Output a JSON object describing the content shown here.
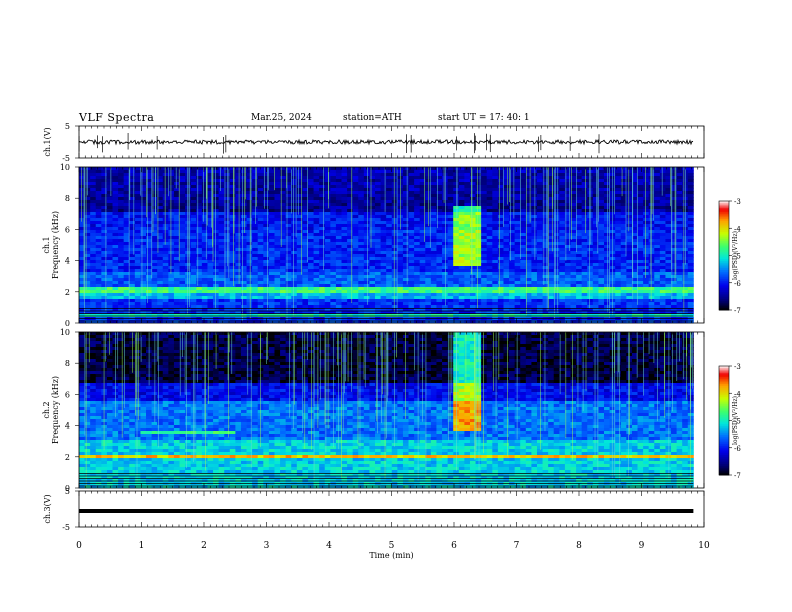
{
  "header": {
    "title": "VLF  Spectra",
    "date": "Mar.25, 2024",
    "station": "station=ATH",
    "start_ut": "start  UT  =    17: 40: 1"
  },
  "chart_data": [
    {
      "type": "line",
      "name": "ch1-voltage",
      "ylabel": "ch.1(V)",
      "ylim": [
        -5,
        5
      ],
      "yticks": [
        "5",
        "-5"
      ],
      "xlim": [
        0,
        10
      ]
    },
    {
      "type": "heatmap",
      "name": "ch1-spectrogram",
      "ylabel": "ch.1\nFrequency (kHz)",
      "ylim": [
        0,
        10
      ],
      "yticks": [
        "0",
        "2",
        "4",
        "6",
        "8",
        "10"
      ],
      "xlim": [
        0,
        10
      ],
      "colorbar": {
        "label": "log(PSD)(V²/Hz)",
        "range": [
          -7,
          -3
        ],
        "ticks": [
          "-3",
          "-4",
          "-5",
          "-6",
          "-7"
        ]
      }
    },
    {
      "type": "heatmap",
      "name": "ch2-spectrogram",
      "ylabel": "ch.2\nFrequency (kHz)",
      "ylim": [
        0,
        10
      ],
      "yticks": [
        "0",
        "2",
        "4",
        "6",
        "8",
        "10"
      ],
      "xlim": [
        0,
        10
      ],
      "colorbar": {
        "label": "log(PSD)(V²/Hz)",
        "range": [
          -7,
          -3
        ],
        "ticks": [
          "-3",
          "-4",
          "-5",
          "-6",
          "-7"
        ]
      }
    },
    {
      "type": "line",
      "name": "ch3-voltage",
      "ylabel": "ch.3(V)",
      "ylim": [
        -5,
        5
      ],
      "yticks": [
        "5",
        "-5"
      ],
      "xlim": [
        0,
        10
      ],
      "xlabel": "Time  (min)",
      "xticks": [
        "0",
        "1",
        "2",
        "3",
        "4",
        "5",
        "6",
        "7",
        "8",
        "9",
        "10"
      ]
    }
  ],
  "ylabels": {
    "ch1v": "ch.1(V)",
    "ch1f_a": "ch.1",
    "ch1f_b": "Frequency (kHz)",
    "ch2f_a": "ch.2",
    "ch2f_b": "Frequency (kHz)",
    "ch3v": "ch.3(V)",
    "cbar": "log(PSD)(V²/Hz)"
  },
  "xlabel": "Time  (min)"
}
